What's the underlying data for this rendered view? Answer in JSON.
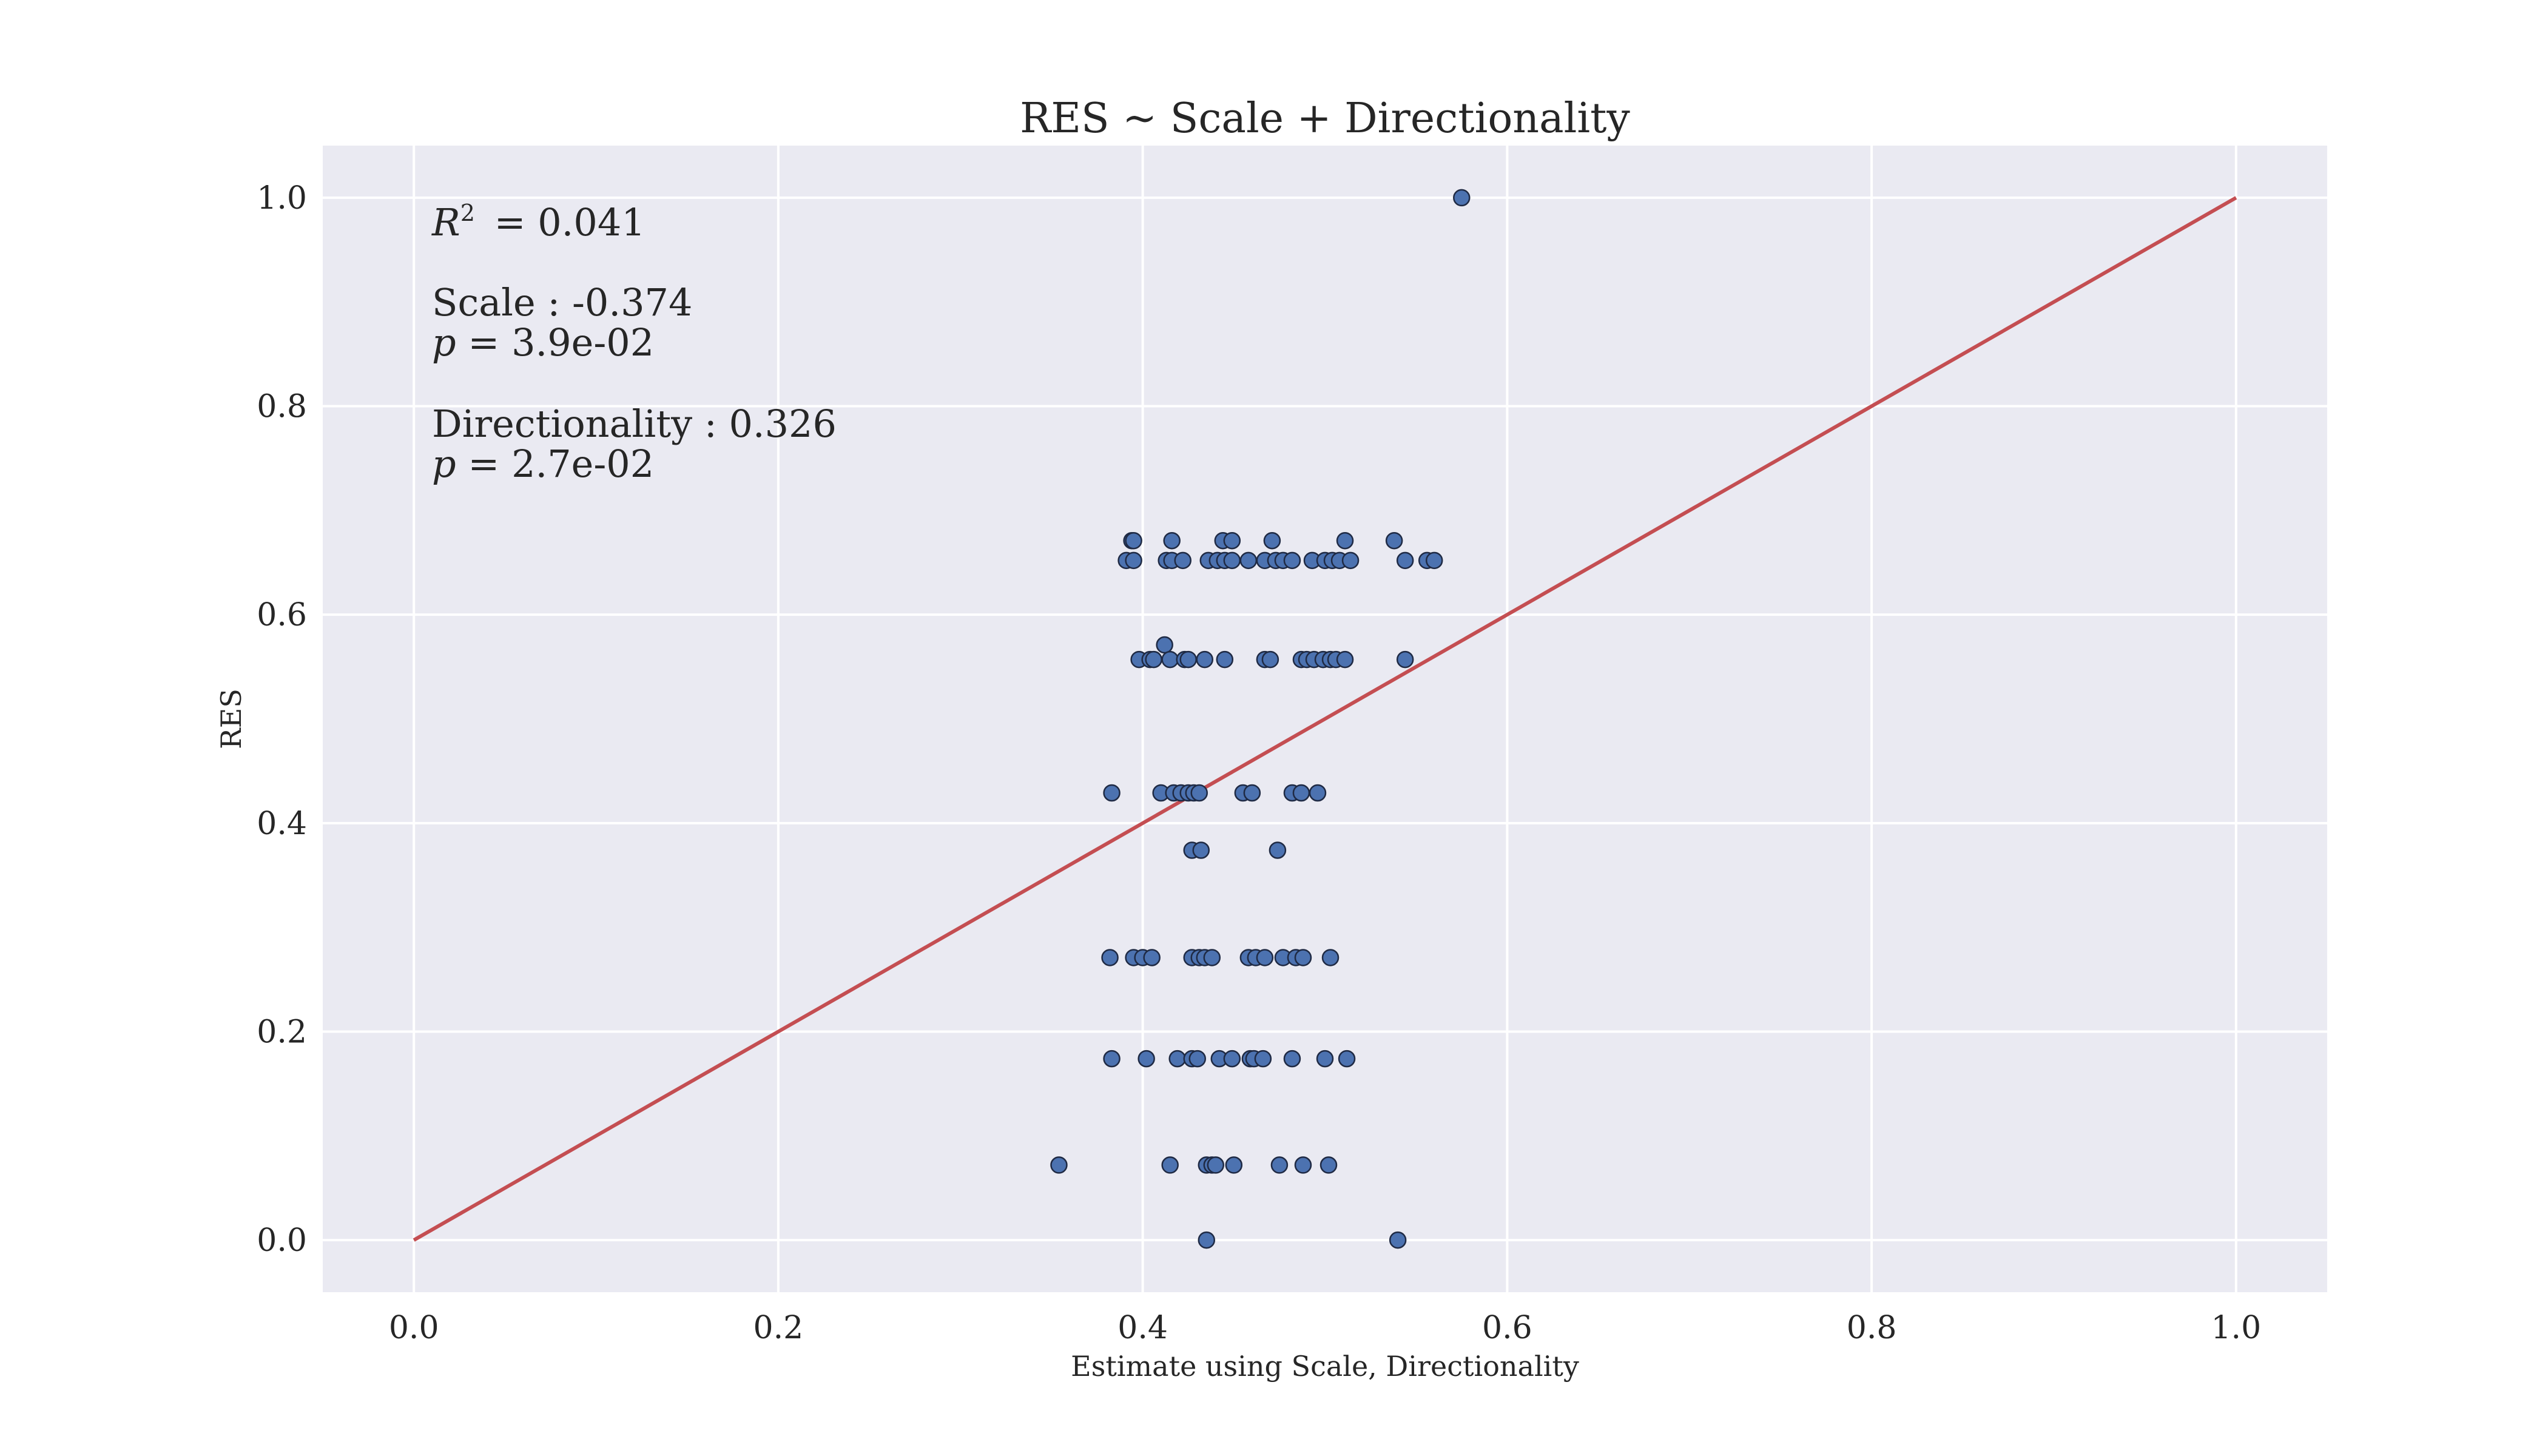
{
  "colors": {
    "background": "#ffffff",
    "plot_background": "#eaeaf2",
    "grid": "#ffffff",
    "points": "#4c72b0",
    "point_edge": "#1f2a44",
    "fit_line": "#c44e52",
    "text": "#262626"
  },
  "chart_data": {
    "type": "scatter",
    "title": "RES ~ Scale + Directionality",
    "xlabel": "Estimate using Scale, Directionality",
    "ylabel": "RES",
    "xlim": [
      -0.05,
      1.05
    ],
    "ylim": [
      -0.05,
      1.05
    ],
    "xticks": [
      0.0,
      0.2,
      0.4,
      0.6,
      0.8,
      1.0
    ],
    "xtick_labels": [
      "0.0",
      "0.2",
      "0.4",
      "0.6",
      "0.8",
      "1.0"
    ],
    "yticks": [
      0.0,
      0.2,
      0.4,
      0.6,
      0.8,
      1.0
    ],
    "ytick_labels": [
      "0.0",
      "0.2",
      "0.4",
      "0.6",
      "0.8",
      "1.0"
    ],
    "grid": true,
    "reference_line": {
      "x": [
        0.0,
        1.0
      ],
      "y": [
        0.0,
        1.0
      ]
    },
    "annotations": {
      "r2_symbol": "R",
      "r2_exponent": "2",
      "r2_value": " = 0.041",
      "scale_coef": "Scale : -0.374",
      "p_symbol": "p",
      "scale_p": " = 3.9e-02",
      "directionality_coef": "Directionality : 0.326",
      "directionality_p": " = 2.7e-02"
    },
    "points": [
      {
        "x": 0.575,
        "y": 1.0
      },
      {
        "x": 0.394,
        "y": 0.671
      },
      {
        "x": 0.395,
        "y": 0.671
      },
      {
        "x": 0.416,
        "y": 0.671
      },
      {
        "x": 0.444,
        "y": 0.671
      },
      {
        "x": 0.449,
        "y": 0.671
      },
      {
        "x": 0.471,
        "y": 0.671
      },
      {
        "x": 0.511,
        "y": 0.671
      },
      {
        "x": 0.538,
        "y": 0.671
      },
      {
        "x": 0.391,
        "y": 0.652
      },
      {
        "x": 0.395,
        "y": 0.652
      },
      {
        "x": 0.413,
        "y": 0.652
      },
      {
        "x": 0.416,
        "y": 0.652
      },
      {
        "x": 0.422,
        "y": 0.652
      },
      {
        "x": 0.436,
        "y": 0.652
      },
      {
        "x": 0.441,
        "y": 0.652
      },
      {
        "x": 0.445,
        "y": 0.652
      },
      {
        "x": 0.449,
        "y": 0.652
      },
      {
        "x": 0.458,
        "y": 0.652
      },
      {
        "x": 0.467,
        "y": 0.652
      },
      {
        "x": 0.473,
        "y": 0.652
      },
      {
        "x": 0.477,
        "y": 0.652
      },
      {
        "x": 0.482,
        "y": 0.652
      },
      {
        "x": 0.493,
        "y": 0.652
      },
      {
        "x": 0.5,
        "y": 0.652
      },
      {
        "x": 0.504,
        "y": 0.652
      },
      {
        "x": 0.508,
        "y": 0.652
      },
      {
        "x": 0.514,
        "y": 0.652
      },
      {
        "x": 0.544,
        "y": 0.652
      },
      {
        "x": 0.556,
        "y": 0.652
      },
      {
        "x": 0.56,
        "y": 0.652
      },
      {
        "x": 0.412,
        "y": 0.571
      },
      {
        "x": 0.398,
        "y": 0.557
      },
      {
        "x": 0.404,
        "y": 0.557
      },
      {
        "x": 0.406,
        "y": 0.557
      },
      {
        "x": 0.415,
        "y": 0.557
      },
      {
        "x": 0.423,
        "y": 0.557
      },
      {
        "x": 0.425,
        "y": 0.557
      },
      {
        "x": 0.434,
        "y": 0.557
      },
      {
        "x": 0.445,
        "y": 0.557
      },
      {
        "x": 0.467,
        "y": 0.557
      },
      {
        "x": 0.47,
        "y": 0.557
      },
      {
        "x": 0.487,
        "y": 0.557
      },
      {
        "x": 0.49,
        "y": 0.557
      },
      {
        "x": 0.494,
        "y": 0.557
      },
      {
        "x": 0.499,
        "y": 0.557
      },
      {
        "x": 0.503,
        "y": 0.557
      },
      {
        "x": 0.506,
        "y": 0.557
      },
      {
        "x": 0.511,
        "y": 0.557
      },
      {
        "x": 0.544,
        "y": 0.557
      },
      {
        "x": 0.383,
        "y": 0.429
      },
      {
        "x": 0.41,
        "y": 0.429
      },
      {
        "x": 0.417,
        "y": 0.429
      },
      {
        "x": 0.421,
        "y": 0.429
      },
      {
        "x": 0.425,
        "y": 0.429
      },
      {
        "x": 0.428,
        "y": 0.429
      },
      {
        "x": 0.431,
        "y": 0.429
      },
      {
        "x": 0.455,
        "y": 0.429
      },
      {
        "x": 0.46,
        "y": 0.429
      },
      {
        "x": 0.482,
        "y": 0.429
      },
      {
        "x": 0.487,
        "y": 0.429
      },
      {
        "x": 0.496,
        "y": 0.429
      },
      {
        "x": 0.427,
        "y": 0.374
      },
      {
        "x": 0.432,
        "y": 0.374
      },
      {
        "x": 0.474,
        "y": 0.374
      },
      {
        "x": 0.382,
        "y": 0.271
      },
      {
        "x": 0.395,
        "y": 0.271
      },
      {
        "x": 0.4,
        "y": 0.271
      },
      {
        "x": 0.405,
        "y": 0.271
      },
      {
        "x": 0.427,
        "y": 0.271
      },
      {
        "x": 0.431,
        "y": 0.271
      },
      {
        "x": 0.434,
        "y": 0.271
      },
      {
        "x": 0.438,
        "y": 0.271
      },
      {
        "x": 0.458,
        "y": 0.271
      },
      {
        "x": 0.462,
        "y": 0.271
      },
      {
        "x": 0.467,
        "y": 0.271
      },
      {
        "x": 0.477,
        "y": 0.271
      },
      {
        "x": 0.484,
        "y": 0.271
      },
      {
        "x": 0.488,
        "y": 0.271
      },
      {
        "x": 0.503,
        "y": 0.271
      },
      {
        "x": 0.383,
        "y": 0.174
      },
      {
        "x": 0.402,
        "y": 0.174
      },
      {
        "x": 0.419,
        "y": 0.174
      },
      {
        "x": 0.427,
        "y": 0.174
      },
      {
        "x": 0.43,
        "y": 0.174
      },
      {
        "x": 0.442,
        "y": 0.174
      },
      {
        "x": 0.449,
        "y": 0.174
      },
      {
        "x": 0.459,
        "y": 0.174
      },
      {
        "x": 0.461,
        "y": 0.174
      },
      {
        "x": 0.466,
        "y": 0.174
      },
      {
        "x": 0.482,
        "y": 0.174
      },
      {
        "x": 0.5,
        "y": 0.174
      },
      {
        "x": 0.512,
        "y": 0.174
      },
      {
        "x": 0.354,
        "y": 0.072
      },
      {
        "x": 0.415,
        "y": 0.072
      },
      {
        "x": 0.435,
        "y": 0.072
      },
      {
        "x": 0.438,
        "y": 0.072
      },
      {
        "x": 0.44,
        "y": 0.072
      },
      {
        "x": 0.45,
        "y": 0.072
      },
      {
        "x": 0.475,
        "y": 0.072
      },
      {
        "x": 0.488,
        "y": 0.072
      },
      {
        "x": 0.502,
        "y": 0.072
      },
      {
        "x": 0.435,
        "y": 0.0
      },
      {
        "x": 0.54,
        "y": 0.0
      }
    ]
  }
}
